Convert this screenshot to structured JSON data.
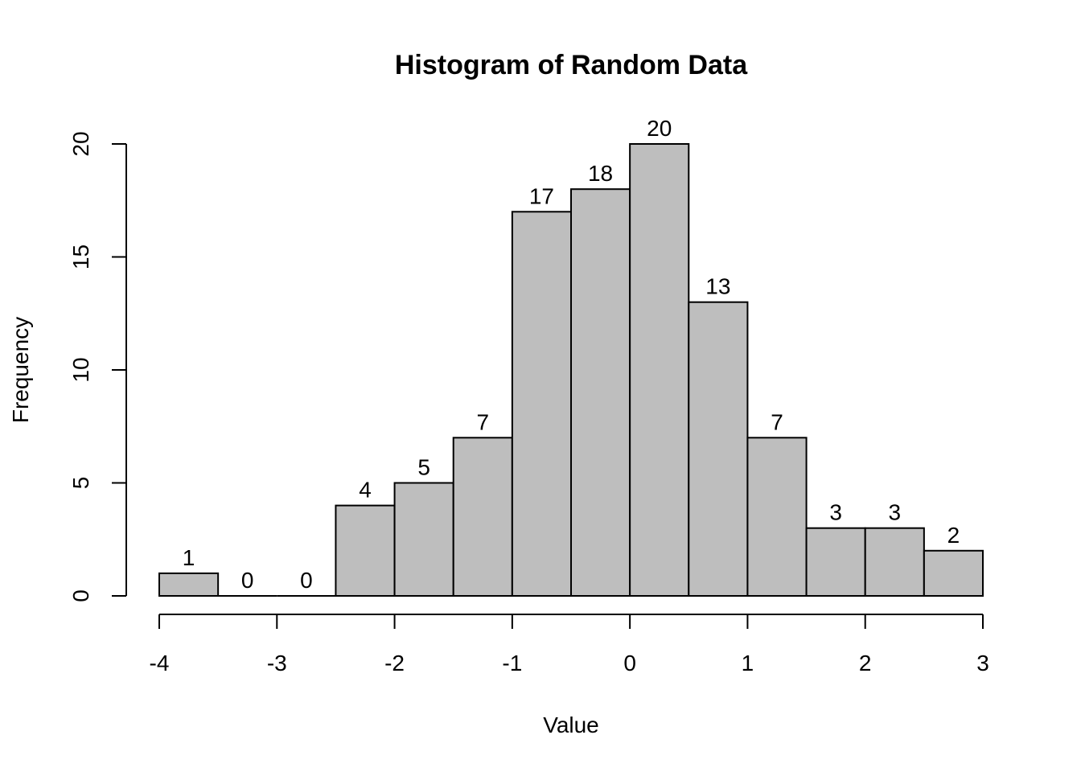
{
  "chart_data": {
    "type": "bar",
    "title": "Histogram of Random Data",
    "xlabel": "Value",
    "ylabel": "Frequency",
    "bins": [
      {
        "start": -4.0,
        "end": -3.5,
        "count": 1
      },
      {
        "start": -3.5,
        "end": -3.0,
        "count": 0
      },
      {
        "start": -3.0,
        "end": -2.5,
        "count": 0
      },
      {
        "start": -2.5,
        "end": -2.0,
        "count": 4
      },
      {
        "start": -2.0,
        "end": -1.5,
        "count": 5
      },
      {
        "start": -1.5,
        "end": -1.0,
        "count": 7
      },
      {
        "start": -1.0,
        "end": -0.5,
        "count": 17
      },
      {
        "start": -0.5,
        "end": 0.0,
        "count": 18
      },
      {
        "start": 0.0,
        "end": 0.5,
        "count": 20
      },
      {
        "start": 0.5,
        "end": 1.0,
        "count": 13
      },
      {
        "start": 1.0,
        "end": 1.5,
        "count": 7
      },
      {
        "start": 1.5,
        "end": 2.0,
        "count": 3
      },
      {
        "start": 2.0,
        "end": 2.5,
        "count": 3
      },
      {
        "start": 2.5,
        "end": 3.0,
        "count": 2
      }
    ],
    "xlim": [
      -4,
      3
    ],
    "ylim": [
      0,
      20
    ],
    "x_ticks": [
      {
        "value": -4,
        "label": "-4"
      },
      {
        "value": -3,
        "label": "-3"
      },
      {
        "value": -2,
        "label": "-2"
      },
      {
        "value": -1,
        "label": "-1"
      },
      {
        "value": 0,
        "label": "0"
      },
      {
        "value": 1,
        "label": "1"
      },
      {
        "value": 2,
        "label": "2"
      },
      {
        "value": 3,
        "label": "3"
      }
    ],
    "y_ticks": [
      {
        "value": 0,
        "label": "0"
      },
      {
        "value": 5,
        "label": "5"
      },
      {
        "value": 10,
        "label": "10"
      },
      {
        "value": 15,
        "label": "15"
      },
      {
        "value": 20,
        "label": "20"
      }
    ],
    "bar_fill": "#bebebe",
    "bar_stroke": "#000000",
    "grid": false,
    "legend": "none"
  }
}
